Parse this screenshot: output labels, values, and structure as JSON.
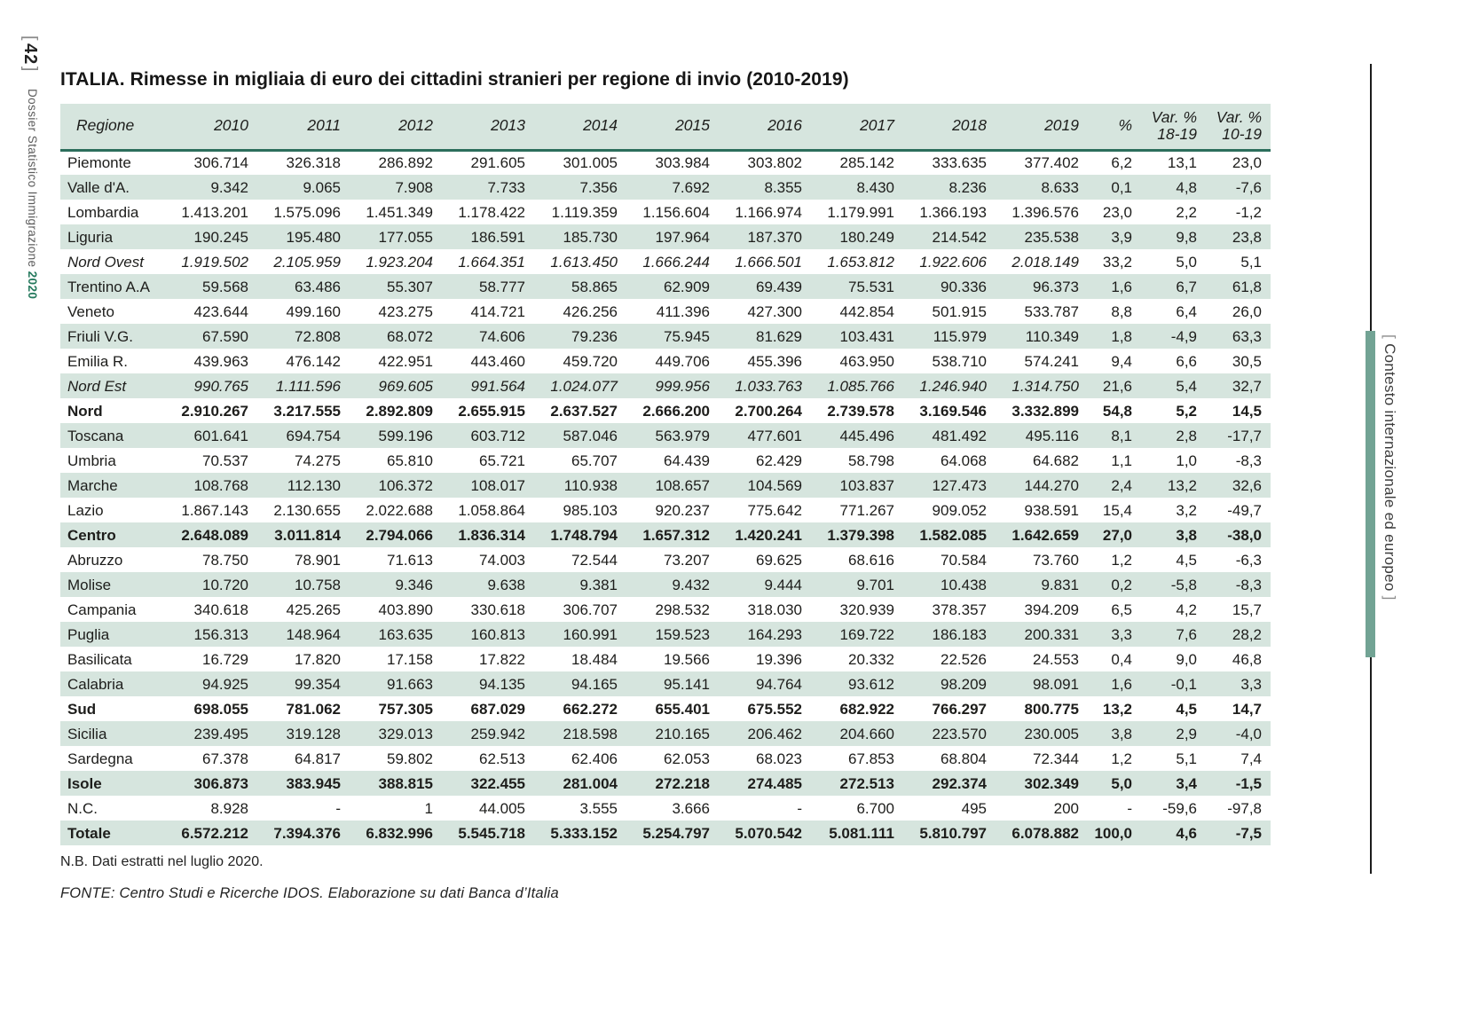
{
  "page": {
    "bracket_open": "[",
    "bracket_close": "]",
    "page_number": "42",
    "series_title": "Dossier Statistico Immigrazione",
    "series_year": "2020",
    "chapter_caption": "Contesto internazionale ed europeo"
  },
  "title": "ITALIA. Rimesse in migliaia di euro dei cittadini stranieri per regione di invio (2010-2019)",
  "colors": {
    "row_shade": "#d6e5de",
    "header_rule": "#2c6e5c",
    "accent_bar": "#72a394",
    "year_green": "#267a5e"
  },
  "notes": {
    "nb": "N.B. Dati estratti nel luglio 2020.",
    "fonte": "FONTE: Centro Studi e Ricerche IDOS. Elaborazione su dati Banca d’Italia"
  },
  "table": {
    "columns": [
      {
        "key": "regione",
        "label": "Regione"
      },
      {
        "key": "y2010",
        "label": "2010"
      },
      {
        "key": "y2011",
        "label": "2011"
      },
      {
        "key": "y2012",
        "label": "2012"
      },
      {
        "key": "y2013",
        "label": "2013"
      },
      {
        "key": "y2014",
        "label": "2014"
      },
      {
        "key": "y2015",
        "label": "2015"
      },
      {
        "key": "y2016",
        "label": "2016"
      },
      {
        "key": "y2017",
        "label": "2017"
      },
      {
        "key": "y2018",
        "label": "2018"
      },
      {
        "key": "y2019",
        "label": "2019"
      },
      {
        "key": "pct",
        "label": "%"
      },
      {
        "key": "var-18-19",
        "label": "Var. %",
        "sub": "18-19"
      },
      {
        "key": "var-10-19",
        "label": "Var. %",
        "sub": "10-19"
      }
    ],
    "rows": [
      {
        "label": "Piemonte",
        "style": "normal",
        "values": [
          "306.714",
          "326.318",
          "286.892",
          "291.605",
          "301.005",
          "303.984",
          "303.802",
          "285.142",
          "333.635",
          "377.402",
          "6,2",
          "13,1",
          "23,0"
        ]
      },
      {
        "label": "Valle d'A.",
        "style": "normal",
        "values": [
          "9.342",
          "9.065",
          "7.908",
          "7.733",
          "7.356",
          "7.692",
          "8.355",
          "8.430",
          "8.236",
          "8.633",
          "0,1",
          "4,8",
          "-7,6"
        ]
      },
      {
        "label": "Lombardia",
        "style": "normal",
        "values": [
          "1.413.201",
          "1.575.096",
          "1.451.349",
          "1.178.422",
          "1.119.359",
          "1.156.604",
          "1.166.974",
          "1.179.991",
          "1.366.193",
          "1.396.576",
          "23,0",
          "2,2",
          "-1,2"
        ]
      },
      {
        "label": "Liguria",
        "style": "normal",
        "values": [
          "190.245",
          "195.480",
          "177.055",
          "186.591",
          "185.730",
          "197.964",
          "187.370",
          "180.249",
          "214.542",
          "235.538",
          "3,9",
          "9,8",
          "23,8"
        ]
      },
      {
        "label": "Nord Ovest",
        "style": "italic",
        "values": [
          "1.919.502",
          "2.105.959",
          "1.923.204",
          "1.664.351",
          "1.613.450",
          "1.666.244",
          "1.666.501",
          "1.653.812",
          "1.922.606",
          "2.018.149",
          "33,2",
          "5,0",
          "5,1"
        ]
      },
      {
        "label": "Trentino A.A",
        "style": "normal",
        "values": [
          "59.568",
          "63.486",
          "55.307",
          "58.777",
          "58.865",
          "62.909",
          "69.439",
          "75.531",
          "90.336",
          "96.373",
          "1,6",
          "6,7",
          "61,8"
        ]
      },
      {
        "label": "Veneto",
        "style": "normal",
        "values": [
          "423.644",
          "499.160",
          "423.275",
          "414.721",
          "426.256",
          "411.396",
          "427.300",
          "442.854",
          "501.915",
          "533.787",
          "8,8",
          "6,4",
          "26,0"
        ]
      },
      {
        "label": "Friuli V.G.",
        "style": "normal",
        "values": [
          "67.590",
          "72.808",
          "68.072",
          "74.606",
          "79.236",
          "75.945",
          "81.629",
          "103.431",
          "115.979",
          "110.349",
          "1,8",
          "-4,9",
          "63,3"
        ]
      },
      {
        "label": "Emilia R.",
        "style": "normal",
        "values": [
          "439.963",
          "476.142",
          "422.951",
          "443.460",
          "459.720",
          "449.706",
          "455.396",
          "463.950",
          "538.710",
          "574.241",
          "9,4",
          "6,6",
          "30,5"
        ]
      },
      {
        "label": "Nord Est",
        "style": "italic",
        "values": [
          "990.765",
          "1.111.596",
          "969.605",
          "991.564",
          "1.024.077",
          "999.956",
          "1.033.763",
          "1.085.766",
          "1.246.940",
          "1.314.750",
          "21,6",
          "5,4",
          "32,7"
        ]
      },
      {
        "label": "Nord",
        "style": "bold",
        "values": [
          "2.910.267",
          "3.217.555",
          "2.892.809",
          "2.655.915",
          "2.637.527",
          "2.666.200",
          "2.700.264",
          "2.739.578",
          "3.169.546",
          "3.332.899",
          "54,8",
          "5,2",
          "14,5"
        ]
      },
      {
        "label": "Toscana",
        "style": "normal",
        "values": [
          "601.641",
          "694.754",
          "599.196",
          "603.712",
          "587.046",
          "563.979",
          "477.601",
          "445.496",
          "481.492",
          "495.116",
          "8,1",
          "2,8",
          "-17,7"
        ]
      },
      {
        "label": "Umbria",
        "style": "normal",
        "values": [
          "70.537",
          "74.275",
          "65.810",
          "65.721",
          "65.707",
          "64.439",
          "62.429",
          "58.798",
          "64.068",
          "64.682",
          "1,1",
          "1,0",
          "-8,3"
        ]
      },
      {
        "label": "Marche",
        "style": "normal",
        "values": [
          "108.768",
          "112.130",
          "106.372",
          "108.017",
          "110.938",
          "108.657",
          "104.569",
          "103.837",
          "127.473",
          "144.270",
          "2,4",
          "13,2",
          "32,6"
        ]
      },
      {
        "label": "Lazio",
        "style": "normal",
        "values": [
          "1.867.143",
          "2.130.655",
          "2.022.688",
          "1.058.864",
          "985.103",
          "920.237",
          "775.642",
          "771.267",
          "909.052",
          "938.591",
          "15,4",
          "3,2",
          "-49,7"
        ]
      },
      {
        "label": "Centro",
        "style": "bold",
        "values": [
          "2.648.089",
          "3.011.814",
          "2.794.066",
          "1.836.314",
          "1.748.794",
          "1.657.312",
          "1.420.241",
          "1.379.398",
          "1.582.085",
          "1.642.659",
          "27,0",
          "3,8",
          "-38,0"
        ]
      },
      {
        "label": "Abruzzo",
        "style": "normal",
        "values": [
          "78.750",
          "78.901",
          "71.613",
          "74.003",
          "72.544",
          "73.207",
          "69.625",
          "68.616",
          "70.584",
          "73.760",
          "1,2",
          "4,5",
          "-6,3"
        ]
      },
      {
        "label": "Molise",
        "style": "normal",
        "values": [
          "10.720",
          "10.758",
          "9.346",
          "9.638",
          "9.381",
          "9.432",
          "9.444",
          "9.701",
          "10.438",
          "9.831",
          "0,2",
          "-5,8",
          "-8,3"
        ]
      },
      {
        "label": "Campania",
        "style": "normal",
        "values": [
          "340.618",
          "425.265",
          "403.890",
          "330.618",
          "306.707",
          "298.532",
          "318.030",
          "320.939",
          "378.357",
          "394.209",
          "6,5",
          "4,2",
          "15,7"
        ]
      },
      {
        "label": "Puglia",
        "style": "normal",
        "values": [
          "156.313",
          "148.964",
          "163.635",
          "160.813",
          "160.991",
          "159.523",
          "164.293",
          "169.722",
          "186.183",
          "200.331",
          "3,3",
          "7,6",
          "28,2"
        ]
      },
      {
        "label": "Basilicata",
        "style": "normal",
        "values": [
          "16.729",
          "17.820",
          "17.158",
          "17.822",
          "18.484",
          "19.566",
          "19.396",
          "20.332",
          "22.526",
          "24.553",
          "0,4",
          "9,0",
          "46,8"
        ]
      },
      {
        "label": "Calabria",
        "style": "normal",
        "values": [
          "94.925",
          "99.354",
          "91.663",
          "94.135",
          "94.165",
          "95.141",
          "94.764",
          "93.612",
          "98.209",
          "98.091",
          "1,6",
          "-0,1",
          "3,3"
        ]
      },
      {
        "label": "Sud",
        "style": "bold",
        "values": [
          "698.055",
          "781.062",
          "757.305",
          "687.029",
          "662.272",
          "655.401",
          "675.552",
          "682.922",
          "766.297",
          "800.775",
          "13,2",
          "4,5",
          "14,7"
        ]
      },
      {
        "label": "Sicilia",
        "style": "normal",
        "values": [
          "239.495",
          "319.128",
          "329.013",
          "259.942",
          "218.598",
          "210.165",
          "206.462",
          "204.660",
          "223.570",
          "230.005",
          "3,8",
          "2,9",
          "-4,0"
        ]
      },
      {
        "label": "Sardegna",
        "style": "normal",
        "values": [
          "67.378",
          "64.817",
          "59.802",
          "62.513",
          "62.406",
          "62.053",
          "68.023",
          "67.853",
          "68.804",
          "72.344",
          "1,2",
          "5,1",
          "7,4"
        ]
      },
      {
        "label": "Isole",
        "style": "bold",
        "values": [
          "306.873",
          "383.945",
          "388.815",
          "322.455",
          "281.004",
          "272.218",
          "274.485",
          "272.513",
          "292.374",
          "302.349",
          "5,0",
          "3,4",
          "-1,5"
        ]
      },
      {
        "label": "N.C.",
        "style": "normal",
        "values": [
          "8.928",
          "-",
          "1",
          "44.005",
          "3.555",
          "3.666",
          "-",
          "6.700",
          "495",
          "200",
          "-",
          "-59,6",
          "-97,8"
        ]
      },
      {
        "label": "Totale",
        "style": "bold",
        "values": [
          "6.572.212",
          "7.394.376",
          "6.832.996",
          "5.545.718",
          "5.333.152",
          "5.254.797",
          "5.070.542",
          "5.081.111",
          "5.810.797",
          "6.078.882",
          "100,0",
          "4,6",
          "-7,5"
        ]
      }
    ]
  }
}
